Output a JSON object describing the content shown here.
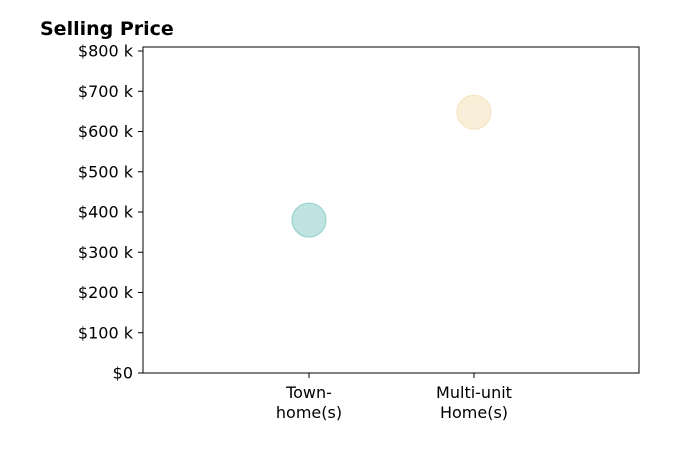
{
  "chart_data": {
    "type": "scatter",
    "title": "Selling Price",
    "xlabel": "",
    "ylabel": "",
    "categories": [
      "Town-\nhome(s)",
      "Multi-unit\nHome(s)"
    ],
    "yticks": [
      0,
      100,
      200,
      300,
      400,
      500,
      600,
      700,
      800
    ],
    "ytick_labels": [
      "$0",
      "$100 k",
      "$200 k",
      "$300 k",
      "$400 k",
      "$500 k",
      "$600 k",
      "$700 k",
      "$800 k"
    ],
    "ylim": [
      0,
      810
    ],
    "grid": false,
    "points": [
      {
        "category": "Town-\nhome(s)",
        "y": 380,
        "color": "#7fc7c2"
      },
      {
        "category": "Multi-unit\nHome(s)",
        "y": 648,
        "color": "#f3ddb0"
      }
    ]
  }
}
